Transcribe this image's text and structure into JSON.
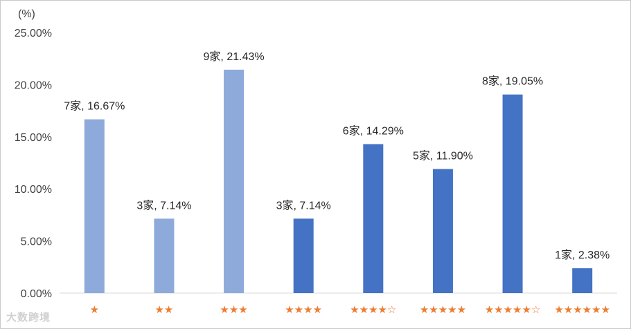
{
  "chart_data": {
    "type": "bar",
    "unit_label": "(%)",
    "categories": [
      "★",
      "★★",
      "★★★",
      "★★★★",
      "★★★★☆",
      "★★★★★",
      "★★★★★☆",
      "★★★★★★"
    ],
    "values": [
      16.67,
      7.14,
      21.43,
      7.14,
      14.29,
      11.9,
      19.05,
      2.38
    ],
    "counts": [
      7,
      3,
      9,
      3,
      6,
      5,
      8,
      1
    ],
    "data_labels": [
      "7家, 16.67%",
      "3家, 7.14%",
      "9家, 21.43%",
      "3家, 7.14%",
      "6家, 14.29%",
      "5家, 11.90%",
      "8家, 19.05%",
      "1家, 2.38%"
    ],
    "bar_colors": [
      "#8eaadb",
      "#8eaadb",
      "#8eaadb",
      "#4472c4",
      "#4472c4",
      "#4472c4",
      "#4472c4",
      "#4472c4"
    ],
    "category_color": "#ed7d31",
    "ylim": [
      0,
      25
    ],
    "yticks": [
      "0.00%",
      "5.00%",
      "10.00%",
      "15.00%",
      "20.00%",
      "25.00%"
    ],
    "grid": false,
    "xlabel": "",
    "ylabel": ""
  },
  "watermark": "大数跨境"
}
